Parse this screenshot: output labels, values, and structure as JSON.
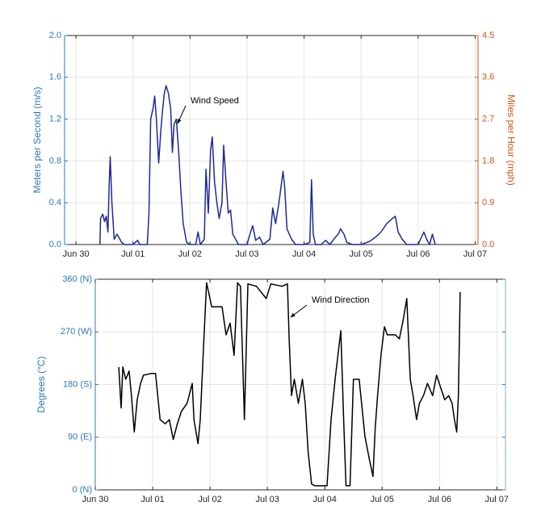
{
  "chart_data": [
    {
      "type": "line",
      "ylabel": "Meters per Second (m/s)",
      "y2label": "Miles per Hour (mph)",
      "annotation": "Wind Speed",
      "xlim": [
        -0.2,
        7.05
      ],
      "xticks": [
        {
          "value": 0,
          "label": "Jun 30"
        },
        {
          "value": 1,
          "label": "Jul 01"
        },
        {
          "value": 2,
          "label": "Jul 02"
        },
        {
          "value": 3,
          "label": "Jul 03"
        },
        {
          "value": 4,
          "label": "Jul 04"
        },
        {
          "value": 5,
          "label": "Jul 05"
        },
        {
          "value": 6,
          "label": "Jul 06"
        },
        {
          "value": 7,
          "label": "Jul 07"
        }
      ],
      "ylim": [
        0,
        2.0
      ],
      "yticks": [
        {
          "value": 0,
          "label": "0.0"
        },
        {
          "value": 0.4,
          "label": "0.4"
        },
        {
          "value": 0.8,
          "label": "0.8"
        },
        {
          "value": 1.2,
          "label": "1.2"
        },
        {
          "value": 1.6,
          "label": "1.6"
        },
        {
          "value": 2.0,
          "label": "2.0"
        }
      ],
      "y2lim": [
        0,
        4.5
      ],
      "y2ticks": [
        {
          "value": 0,
          "label": "0.0"
        },
        0.9,
        1.8,
        2.7,
        3.6,
        4.5
      ],
      "grid": true,
      "axis_color": "#2a7ab8",
      "y2_axis_color": "#d95319",
      "series": [
        {
          "name": "Wind Speed",
          "color": "#1c2a9a",
          "x": [
            0.42,
            0.43,
            0.47,
            0.5,
            0.53,
            0.56,
            0.58,
            0.6,
            0.63,
            0.67,
            0.72,
            0.8,
            0.85,
            1.0,
            1.08,
            1.12,
            1.25,
            1.28,
            1.31,
            1.35,
            1.38,
            1.41,
            1.45,
            1.49,
            1.52,
            1.55,
            1.58,
            1.62,
            1.66,
            1.69,
            1.72,
            1.76,
            1.8,
            1.84,
            1.88,
            1.94,
            2.0,
            2.1,
            2.14,
            2.18,
            2.25,
            2.28,
            2.32,
            2.36,
            2.39,
            2.43,
            2.47,
            2.51,
            2.56,
            2.59,
            2.63,
            2.67,
            2.71,
            2.75,
            2.85,
            3.0,
            3.05,
            3.1,
            3.15,
            3.22,
            3.28,
            3.4,
            3.45,
            3.5,
            3.56,
            3.63,
            3.66,
            3.7,
            3.78,
            3.85,
            4.0,
            4.1,
            4.13,
            4.16,
            4.2,
            4.3,
            4.38,
            4.45,
            4.55,
            4.6,
            4.64,
            4.7,
            4.75,
            4.85,
            5.0,
            5.15,
            5.25,
            5.35,
            5.45,
            5.55,
            5.6,
            5.65,
            5.72,
            5.8,
            6.0,
            6.1,
            6.15,
            6.2,
            6.25,
            6.3
          ],
          "values": [
            0,
            0.25,
            0.29,
            0.22,
            0.27,
            0.12,
            0.55,
            0.84,
            0.4,
            0.05,
            0.1,
            0.02,
            0,
            0,
            0.04,
            0,
            0,
            0.3,
            1.2,
            1.3,
            1.42,
            1.2,
            0.78,
            1.1,
            1.3,
            1.45,
            1.52,
            1.45,
            1.3,
            0.88,
            1.15,
            1.2,
            0.9,
            0.5,
            0.2,
            0.02,
            0,
            0,
            0.12,
            0,
            0.05,
            0.72,
            0.3,
            0.9,
            1.03,
            0.6,
            0.4,
            0.25,
            0.4,
            0.95,
            0.6,
            0.3,
            0.33,
            0.1,
            0,
            0,
            0.1,
            0.18,
            0.04,
            0.07,
            0,
            0.05,
            0.35,
            0.2,
            0.4,
            0.7,
            0.55,
            0.15,
            0.05,
            0,
            0,
            0.02,
            0.62,
            0.1,
            0,
            0,
            0.04,
            0,
            0.07,
            0.1,
            0.15,
            0.1,
            0.02,
            0,
            0,
            0.03,
            0.07,
            0.12,
            0.2,
            0.25,
            0.27,
            0.12,
            0.05,
            0,
            0,
            0.12,
            0.05,
            0,
            0.1,
            0
          ]
        }
      ]
    },
    {
      "type": "line",
      "ylabel": "Degrees (°C)",
      "annotation": "Wind Direction",
      "xlim": [
        0,
        7.15
      ],
      "xticks": [
        {
          "value": 0,
          "label": "Jun 30"
        },
        {
          "value": 1,
          "label": "Jul 01"
        },
        {
          "value": 2,
          "label": "Jul 02"
        },
        {
          "value": 3,
          "label": "Jul 03"
        },
        {
          "value": 4,
          "label": "Jul 04"
        },
        {
          "value": 5,
          "label": "Jul 05"
        },
        {
          "value": 6,
          "label": "Jul 06"
        },
        {
          "value": 7,
          "label": "Jul 07"
        }
      ],
      "ylim": [
        0,
        360
      ],
      "yticks": [
        {
          "value": 0,
          "label": "0 (N)"
        },
        {
          "value": 90,
          "label": "90 (E)"
        },
        {
          "value": 180,
          "label": "180 (S)"
        },
        {
          "value": 270,
          "label": "270 (W)"
        },
        {
          "value": 360,
          "label": "360 (N)"
        }
      ],
      "grid": true,
      "axis_color": "#2a7ab8",
      "series": [
        {
          "name": "Wind Direction",
          "color": "#000000",
          "x": [
            0.41,
            0.45,
            0.48,
            0.53,
            0.59,
            0.63,
            0.68,
            0.73,
            0.79,
            0.84,
            0.98,
            1.05,
            1.13,
            1.22,
            1.29,
            1.36,
            1.43,
            1.5,
            1.6,
            1.69,
            1.72,
            1.79,
            1.83,
            1.88,
            1.94,
            2.03,
            2.21,
            2.28,
            2.35,
            2.42,
            2.48,
            2.53,
            2.6,
            2.66,
            2.81,
            2.98,
            3.06,
            3.26,
            3.35,
            3.38,
            3.42,
            3.47,
            3.54,
            3.61,
            3.66,
            3.71,
            3.77,
            3.83,
            4.04,
            4.11,
            4.18,
            4.28,
            4.33,
            4.37,
            4.44,
            4.5,
            4.6,
            4.7,
            4.78,
            4.84,
            4.88,
            4.92,
            4.98,
            5.04,
            5.09,
            5.23,
            5.3,
            5.37,
            5.43,
            5.49,
            5.54,
            5.6,
            5.65,
            5.72,
            5.79,
            5.88,
            5.95,
            6.02,
            6.09,
            6.16,
            6.22,
            6.26,
            6.3,
            6.33,
            6.36
          ],
          "values": [
            210,
            140,
            210,
            189,
            203,
            161,
            99,
            154,
            182,
            196,
            199,
            199,
            120,
            113,
            120,
            86,
            113,
            134,
            148,
            182,
            120,
            79,
            120,
            230,
            354,
            313,
            313,
            265,
            285,
            230,
            354,
            348,
            120,
            352,
            348,
            327,
            352,
            348,
            352,
            258,
            161,
            189,
            148,
            189,
            148,
            65,
            10,
            7,
            7,
            120,
            189,
            272,
            120,
            7,
            7,
            189,
            189,
            92,
            51,
            23,
            106,
            161,
            230,
            279,
            265,
            265,
            258,
            292,
            327,
            189,
            161,
            120,
            148,
            161,
            182,
            161,
            196,
            175,
            154,
            161,
            148,
            120,
            99,
            161,
            338
          ]
        }
      ]
    }
  ]
}
